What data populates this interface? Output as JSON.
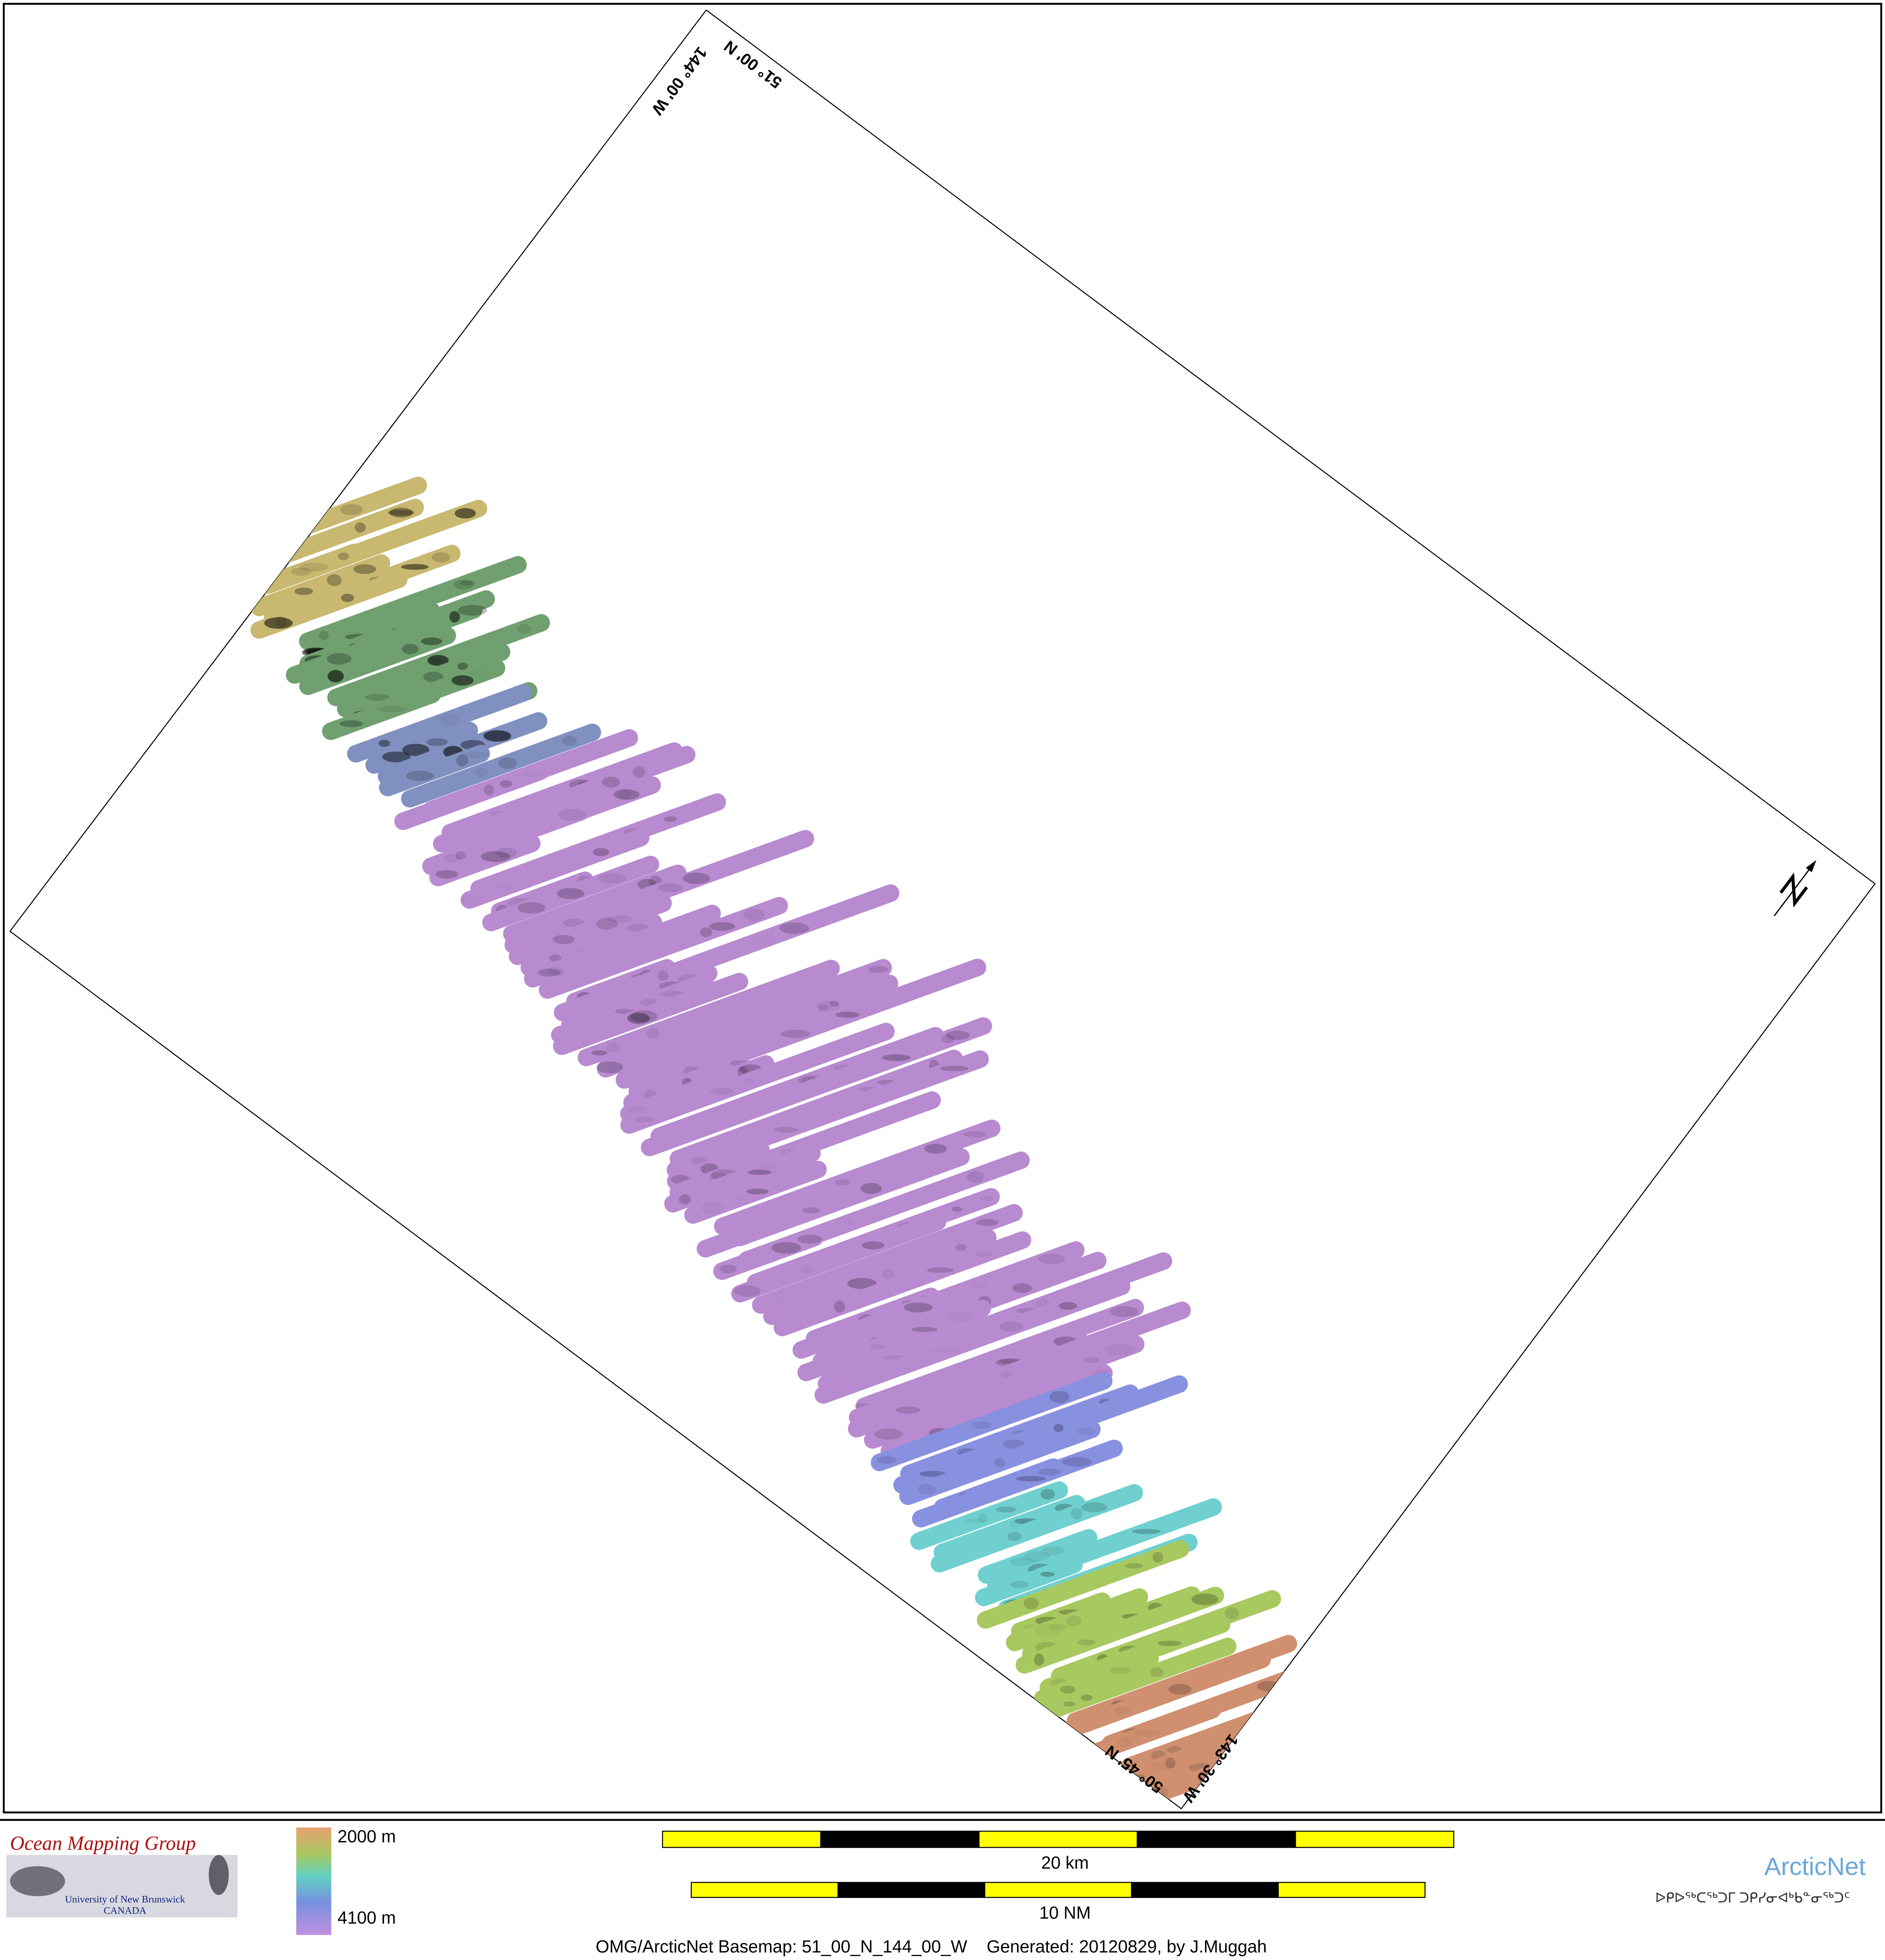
{
  "map": {
    "coordinate_labels": [
      "144° 00' W",
      "51° 00' N",
      "143° 30' W",
      "50° 45' N"
    ]
  },
  "logo_left": {
    "title": "Ocean Mapping Group",
    "line1": "University of New Brunswick",
    "line2": "CANADA"
  },
  "depth_legend": {
    "top": "2000 m",
    "bottom": "4100 m"
  },
  "scale_bars": [
    "20 km",
    "10 NM"
  ],
  "logo_right": {
    "title": "ArcticNet",
    "subtitle": "ᐅᑭᐅᖅᑕᖅᑐᒥ ᑐᑭᓯᓂᐊᒃᑲᓐᓂᖅᑐᑦ"
  },
  "footer": "OMG/ArcticNet Basemap: 51_00_N_144_00_W    Generated: 20120829, by J.Muggah"
}
